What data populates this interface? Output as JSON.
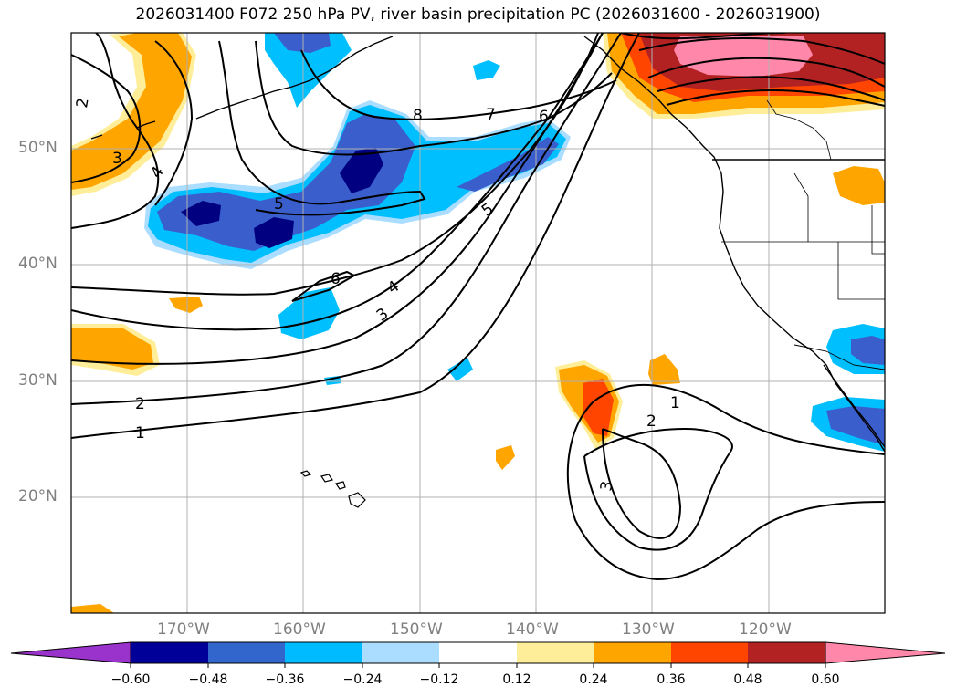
{
  "title": "2026031400 F072 250 hPa PV, river basin precipitation PC (2026031600 - 2026031900)",
  "lat_labels": [
    "50°N",
    "40°N",
    "30°N",
    "20°N"
  ],
  "lon_labels": [
    "170°W",
    "160°W",
    "150°W",
    "140°W",
    "130°W",
    "120°W"
  ],
  "contour_labels": [
    "2",
    "3",
    "4",
    "5",
    "8",
    "7",
    "6",
    "5",
    "6",
    "4",
    "3",
    "2",
    "1",
    "1",
    "2",
    "3"
  ],
  "colorbar": {
    "ticks": [
      "−0.60",
      "−0.48",
      "−0.36",
      "−0.24",
      "−0.12",
      "0.12",
      "0.24",
      "0.36",
      "0.48",
      "0.60"
    ],
    "colors": [
      "#9933cc",
      "#000099",
      "#3366cc",
      "#00bbff",
      "#aaddff",
      "#ffffff",
      "#ffee99",
      "#ffa500",
      "#ff4500",
      "#b22222",
      "#ff88aa"
    ]
  },
  "colors": {
    "strong_negative": "#000080",
    "negative": "#3a5fcd",
    "moderate_negative": "#00bfff",
    "weak_negative": "#aaddff",
    "weak_positive": "#ffee99",
    "moderate_positive": "#ffa500",
    "positive": "#ff4500",
    "strong_positive": "#b22222",
    "extreme_positive": "#ff88aa"
  }
}
